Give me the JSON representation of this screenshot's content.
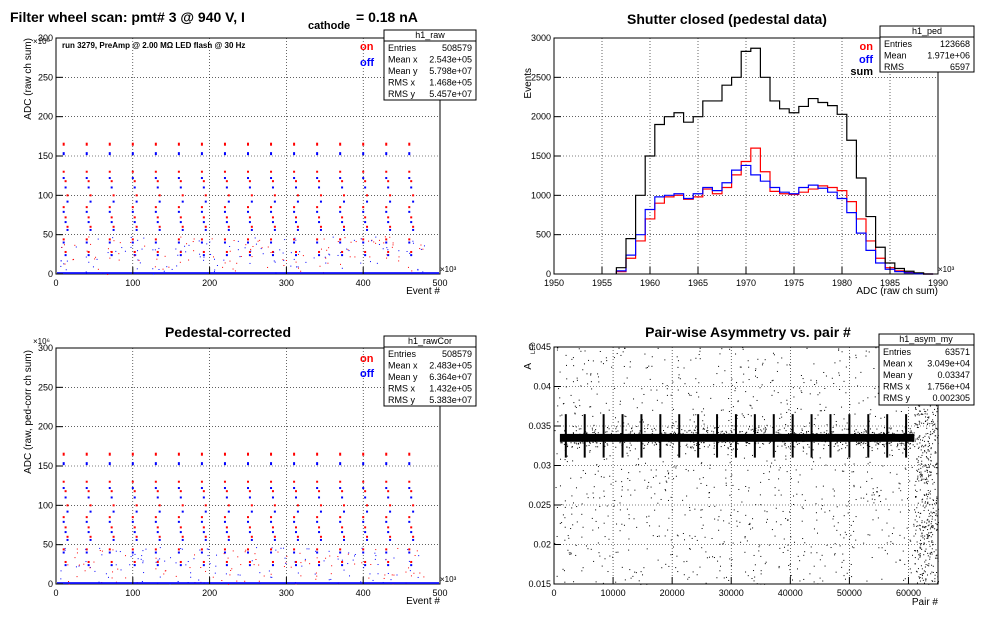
{
  "panels": {
    "raw": {
      "title_main": "Filter wheel scan: pmt#   3 @   940 V, I",
      "title_sub": "cathode",
      "title_tail": " = 0.18 nA",
      "note": "run 3279, PreAmp @ 2.00 MΩ   LED flash @   30 Hz",
      "ylabel": "ADC (raw ch sum)",
      "xlabel": "Event #",
      "x_exp": "×10³",
      "y_exp": "×10⁶",
      "xticks": [
        "0",
        "100",
        "200",
        "300",
        "400",
        "500"
      ],
      "yticks": [
        "0",
        "50",
        "100",
        "150",
        "200",
        "250",
        "300"
      ],
      "legend": [
        "on",
        "off"
      ],
      "stats": {
        "name": "h1_raw",
        "rows": [
          [
            "Entries",
            "508579"
          ],
          [
            "Mean x",
            "2.543e+05"
          ],
          [
            "Mean y",
            "5.798e+07"
          ],
          [
            "RMS x",
            "1.468e+05"
          ],
          [
            "RMS y",
            "5.457e+07"
          ]
        ]
      }
    },
    "ped": {
      "title": "Shutter closed (pedestal data)",
      "ylabel": "Events",
      "xlabel": "ADC (raw ch sum)",
      "x_exp": "×10³",
      "xticks": [
        "1950",
        "1955",
        "1960",
        "1965",
        "1970",
        "1975",
        "1980",
        "1985",
        "1990"
      ],
      "yticks": [
        "0",
        "500",
        "1000",
        "1500",
        "2000",
        "2500",
        "3000"
      ],
      "legend": [
        "on",
        "off",
        "sum"
      ],
      "stats": {
        "name": "h1_ped",
        "rows": [
          [
            "Entries",
            "123668"
          ],
          [
            "Mean",
            "1.971e+06"
          ],
          [
            "RMS",
            "6597"
          ]
        ]
      }
    },
    "cor": {
      "title": "Pedestal-corrected",
      "ylabel": "ADC (raw, ped-corr ch sum)",
      "xlabel": "Event #",
      "x_exp": "×10³",
      "y_exp": "×10⁶",
      "xticks": [
        "0",
        "100",
        "200",
        "300",
        "400",
        "500"
      ],
      "yticks": [
        "0",
        "50",
        "100",
        "150",
        "200",
        "250",
        "300"
      ],
      "legend": [
        "on",
        "off"
      ],
      "stats": {
        "name": "h1_rawCor",
        "rows": [
          [
            "Entries",
            "508579"
          ],
          [
            "Mean x",
            "2.483e+05"
          ],
          [
            "Mean y",
            "6.364e+07"
          ],
          [
            "RMS x",
            "1.432e+05"
          ],
          [
            "RMS y",
            "5.383e+07"
          ]
        ]
      }
    },
    "asym": {
      "title": "Pair-wise Asymmetry vs. pair #",
      "ylabel": "A",
      "ylabel_sub": "LED",
      "xlabel": "Pair #",
      "xticks": [
        "0",
        "10000",
        "20000",
        "30000",
        "40000",
        "50000",
        "60000"
      ],
      "yticks": [
        "0.015",
        "0.02",
        "0.025",
        "0.03",
        "0.035",
        "0.04",
        "0.045"
      ],
      "stats": {
        "name": "h1_asym_my",
        "rows": [
          [
            "Entries",
            "63571"
          ],
          [
            "Mean x",
            "3.049e+04"
          ],
          [
            "Mean y",
            "0.03347"
          ],
          [
            "RMS x",
            "1.756e+04"
          ],
          [
            "RMS y",
            "0.002305"
          ]
        ]
      }
    }
  },
  "colors": {
    "on": "#ff0000",
    "off": "#0000ff",
    "sum": "#000000",
    "frame": "#000000"
  },
  "chart_data": [
    {
      "type": "scatter",
      "title": "Filter wheel scan: pmt#   3 @   940 V, I cathode = 0.18 nA",
      "xlabel": "Event #",
      "ylabel": "ADC (raw ch sum)",
      "xlim": [
        0,
        500000
      ],
      "ylim": [
        0,
        300000000
      ],
      "grid": true,
      "legend_position": "top-right",
      "series": [
        {
          "name": "on",
          "x": [
            10000,
            40000,
            70000,
            100000,
            130000,
            160000,
            190000,
            220000,
            250000,
            280000,
            310000,
            340000,
            370000,
            400000,
            430000,
            460000
          ],
          "y": [
            165000000,
            165000000,
            165000000,
            165000000,
            165000000,
            165000000,
            165000000,
            165000000,
            165000000,
            165000000,
            165000000,
            165000000,
            165000000,
            165000000,
            165000000,
            165000000
          ]
        },
        {
          "name": "off",
          "x": [
            10000,
            40000,
            70000,
            100000,
            130000,
            160000,
            190000,
            220000,
            250000,
            280000,
            310000,
            340000,
            370000,
            400000,
            430000,
            460000
          ],
          "y": [
            153000000,
            153000000,
            153000000,
            153000000,
            153000000,
            153000000,
            153000000,
            153000000,
            153000000,
            153000000,
            153000000,
            153000000,
            153000000,
            153000000,
            153000000,
            153000000
          ]
        }
      ]
    },
    {
      "type": "line",
      "title": "Shutter closed (pedestal data)",
      "xlabel": "ADC (raw ch sum)",
      "ylabel": "Events",
      "xlim": [
        1950000,
        1990000
      ],
      "ylim": [
        0,
        3000
      ],
      "grid": true,
      "legend_position": "top-right",
      "x": [
        1957000,
        1958000,
        1959000,
        1960000,
        1961000,
        1962000,
        1963000,
        1964000,
        1965000,
        1966000,
        1967000,
        1968000,
        1969000,
        1970000,
        1971000,
        1972000,
        1973000,
        1974000,
        1975000,
        1976000,
        1977000,
        1978000,
        1979000,
        1980000,
        1981000,
        1982000,
        1983000,
        1984000,
        1985000,
        1986000,
        1987000,
        1988000,
        1989000
      ],
      "series": [
        {
          "name": "on",
          "values": [
            30,
            200,
            420,
            700,
            900,
            980,
            1000,
            950,
            980,
            1080,
            1020,
            1100,
            1260,
            1430,
            1600,
            1300,
            1050,
            1020,
            1010,
            1040,
            1080,
            1120,
            1100,
            1060,
            920,
            700,
            420,
            200,
            80,
            40,
            20,
            10,
            0
          ]
        },
        {
          "name": "off",
          "values": [
            40,
            240,
            500,
            820,
            980,
            1000,
            1020,
            960,
            1020,
            1100,
            1060,
            1160,
            1320,
            1380,
            1260,
            1180,
            1100,
            1040,
            1020,
            1100,
            1130,
            1090,
            1040,
            960,
            780,
            520,
            300,
            140,
            60,
            30,
            15,
            5,
            0
          ]
        },
        {
          "name": "sum",
          "values": [
            80,
            450,
            1000,
            1500,
            1900,
            2000,
            2050,
            1930,
            2000,
            2200,
            2200,
            2400,
            2500,
            2830,
            2870,
            2500,
            2200,
            2100,
            2050,
            2130,
            2230,
            2180,
            2140,
            2030,
            1700,
            1220,
            730,
            340,
            140,
            70,
            35,
            15,
            0
          ]
        }
      ]
    },
    {
      "type": "scatter",
      "title": "Pedestal-corrected",
      "xlabel": "Event #",
      "ylabel": "ADC (raw, ped-corr ch sum)",
      "xlim": [
        0,
        500000
      ],
      "ylim": [
        0,
        300000000
      ],
      "grid": true,
      "legend_position": "top-right",
      "series": [
        {
          "name": "on",
          "x": [
            10000,
            40000,
            70000,
            100000,
            130000,
            160000,
            190000,
            220000,
            250000,
            280000,
            310000,
            340000,
            370000,
            400000,
            430000,
            460000
          ],
          "y": [
            165000000,
            165000000,
            165000000,
            165000000,
            165000000,
            165000000,
            165000000,
            165000000,
            165000000,
            165000000,
            165000000,
            165000000,
            165000000,
            165000000,
            165000000,
            165000000
          ]
        },
        {
          "name": "off",
          "x": [
            10000,
            40000,
            70000,
            100000,
            130000,
            160000,
            190000,
            220000,
            250000,
            280000,
            310000,
            340000,
            370000,
            400000,
            430000,
            460000
          ],
          "y": [
            153000000,
            153000000,
            153000000,
            153000000,
            153000000,
            153000000,
            153000000,
            153000000,
            153000000,
            153000000,
            153000000,
            153000000,
            153000000,
            153000000,
            153000000,
            153000000
          ]
        }
      ]
    },
    {
      "type": "scatter",
      "title": "Pair-wise Asymmetry vs. pair #",
      "xlabel": "Pair #",
      "ylabel": "A LED",
      "xlim": [
        0,
        65000
      ],
      "ylim": [
        0.015,
        0.045
      ],
      "grid": true,
      "band": {
        "x_range": [
          1000,
          61000
        ],
        "center": 0.0335,
        "half_width": 0.0005
      },
      "spike_x": [
        2000,
        5200,
        8400,
        11600,
        14800,
        18000,
        21200,
        24400,
        27600,
        30800,
        34000,
        37200,
        40400,
        43600,
        46800,
        50000,
        53200,
        56400,
        59600
      ],
      "spike_y_range": [
        0.031,
        0.0365
      ]
    }
  ]
}
